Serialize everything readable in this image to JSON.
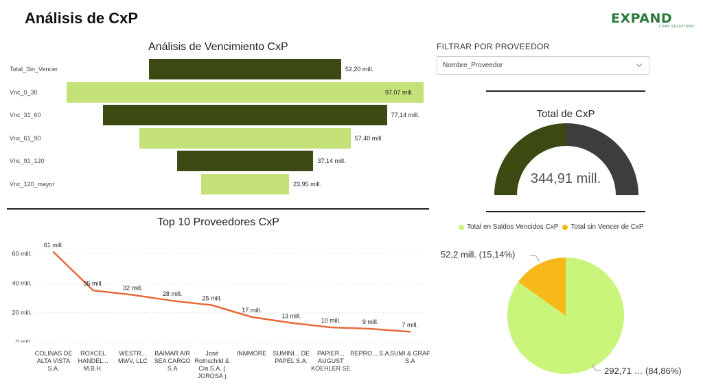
{
  "header": {
    "title": "Análisis de CxP"
  },
  "logo": {
    "name": "EXPAND",
    "tagline": "CORP SOLUTIONS"
  },
  "filter": {
    "title": "FILTRAR POR PROVEEDOR",
    "placeholder": "Nombre_Proveedor",
    "icon": "chevron-down-icon"
  },
  "chart_data": [
    {
      "type": "bar",
      "subtype": "funnel",
      "title": "Análisis de Vencimiento CxP",
      "categories": [
        "Total_Sin_Vencer",
        "Vnc_0_30",
        "Vnc_31_60",
        "Vnc_61_90",
        "Vnc_91_120",
        "Vnc_120_mayor"
      ],
      "values": [
        52.2,
        97.07,
        77.14,
        57.4,
        37.14,
        23.95
      ],
      "value_labels": [
        "52,20 mill.",
        "97,07 mill.",
        "77,14 mill.",
        "57,40 mill.",
        "37,14 mill.",
        "23,95 mill."
      ],
      "colors": [
        "#3a4a12",
        "#c5e17a",
        "#3a4a12",
        "#c5e17a",
        "#3a4a12",
        "#c5e17a"
      ]
    },
    {
      "type": "line",
      "title": "Top 10 Proveedores CxP",
      "categories": [
        "COLINAS DE ALTA VISTA S.A.",
        "ROXCEL HANDEL... M.B.H.",
        "WESTR... MWV, LLC",
        "BAIMAR AIR SEA CARGO S.A",
        "José Rothschild & Cía S.A. ( JOROSA )",
        "INMMORE",
        "SUMINI... DE PAPEL S.A.",
        "PAPIER... AUGUST KOEHLER SE",
        "REPRO... S.A.",
        "SUMI & GRAF S.A"
      ],
      "values": [
        61,
        35,
        32,
        28,
        25,
        17,
        13,
        10,
        9,
        7
      ],
      "value_labels": [
        "61 mill.",
        "35 mill.",
        "32 mill.",
        "28 mill.",
        "25 mill.",
        "17 mill.",
        "13 mill.",
        "10 mill.",
        "9 mill.",
        "7 mill."
      ],
      "ylim": [
        0,
        65
      ],
      "yticks": [
        0,
        20,
        40,
        60
      ],
      "ytick_labels": [
        "0 mill.",
        "20 mill.",
        "40 mill.",
        "60 mill."
      ],
      "grid": true,
      "color": "#e8693a"
    },
    {
      "type": "pie",
      "subtype": "gauge",
      "title": "Total de CxP",
      "value": 344.91,
      "value_label": "344,91 mill.",
      "fill_fraction": 0.5,
      "colors": [
        "#3a4a12",
        "#3d3d3d"
      ]
    },
    {
      "type": "pie",
      "labels": [
        "Total en Saldos Vencidos CxP",
        "Total sin Vencer de CxP"
      ],
      "values": [
        292.71,
        52.2
      ],
      "percentages": [
        84.86,
        15.14
      ],
      "data_labels": [
        "292,71 … (84,86%)",
        "52,2 mill. (15,14%)"
      ],
      "colors": [
        "#c8f57a",
        "#f7b81a"
      ],
      "legend": "top"
    }
  ]
}
